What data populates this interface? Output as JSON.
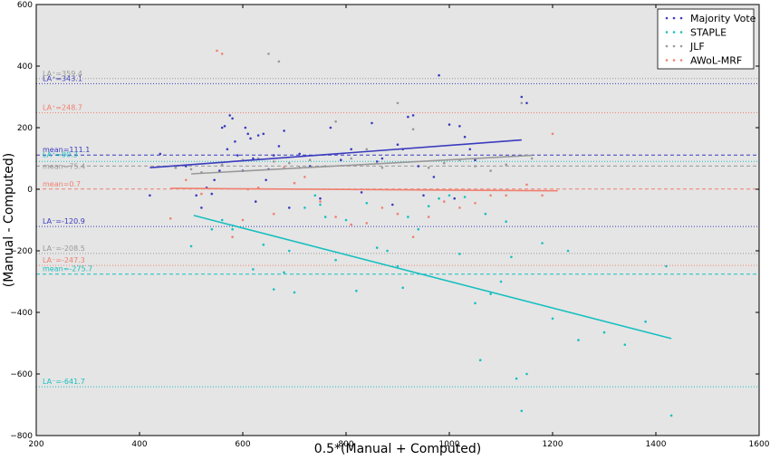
{
  "chart_data": {
    "type": "scatter",
    "xlabel": "0.5*(Manual + Computed)",
    "ylabel": "(Manual - Computed)",
    "xlim": [
      200,
      1600
    ],
    "ylim": [
      -800,
      600
    ],
    "xticks": [
      "200",
      "400",
      "600",
      "800",
      "1000",
      "1200",
      "1400",
      "1600"
    ],
    "yticks": [
      "−800",
      "−600",
      "−400",
      "−200",
      "0",
      "200",
      "400",
      "600"
    ],
    "x_tick_values": [
      200,
      400,
      600,
      800,
      1000,
      1200,
      1400,
      1600
    ],
    "y_tick_values": [
      -800,
      -600,
      -400,
      -200,
      0,
      200,
      400,
      600
    ],
    "background": "#e5e5e5",
    "grid": false,
    "legend_position": "top-right",
    "series": [
      {
        "name": "Majority Vote",
        "color": "#3b3bbf",
        "points": [
          [
            420,
            -20
          ],
          [
            440,
            115
          ],
          [
            470,
            70
          ],
          [
            490,
            75
          ],
          [
            510,
            -20
          ],
          [
            520,
            -60
          ],
          [
            530,
            5
          ],
          [
            540,
            -15
          ],
          [
            545,
            30
          ],
          [
            555,
            60
          ],
          [
            560,
            200
          ],
          [
            565,
            205
          ],
          [
            570,
            130
          ],
          [
            575,
            240
          ],
          [
            580,
            230
          ],
          [
            585,
            155
          ],
          [
            590,
            110
          ],
          [
            600,
            60
          ],
          [
            605,
            200
          ],
          [
            610,
            180
          ],
          [
            615,
            165
          ],
          [
            620,
            100
          ],
          [
            625,
            -40
          ],
          [
            630,
            175
          ],
          [
            640,
            180
          ],
          [
            645,
            30
          ],
          [
            650,
            65
          ],
          [
            660,
            110
          ],
          [
            670,
            140
          ],
          [
            680,
            190
          ],
          [
            690,
            -60
          ],
          [
            710,
            115
          ],
          [
            730,
            75
          ],
          [
            750,
            -30
          ],
          [
            770,
            200
          ],
          [
            790,
            95
          ],
          [
            810,
            130
          ],
          [
            830,
            -10
          ],
          [
            850,
            215
          ],
          [
            860,
            90
          ],
          [
            870,
            100
          ],
          [
            890,
            -50
          ],
          [
            900,
            145
          ],
          [
            910,
            130
          ],
          [
            920,
            235
          ],
          [
            930,
            240
          ],
          [
            940,
            75
          ],
          [
            950,
            -20
          ],
          [
            970,
            40
          ],
          [
            980,
            370
          ],
          [
            1000,
            210
          ],
          [
            1010,
            -30
          ],
          [
            1020,
            205
          ],
          [
            1030,
            170
          ],
          [
            1040,
            130
          ],
          [
            1050,
            95
          ],
          [
            1140,
            300
          ],
          [
            1150,
            280
          ]
        ],
        "regression": [
          [
            420,
            70
          ],
          [
            1140,
            160
          ]
        ],
        "mean": 111.1,
        "mean_label": "mean=111.1",
        "loa_upper": 343.1,
        "loa_upper_label": "LA⁺=343.1",
        "loa_lower": -120.9,
        "loa_lower_label": "LA⁻=-120.9"
      },
      {
        "name": "STAPLE",
        "color": "#17bfbf",
        "points": [
          [
            500,
            -185
          ],
          [
            540,
            -130
          ],
          [
            560,
            -100
          ],
          [
            580,
            -130
          ],
          [
            620,
            -260
          ],
          [
            640,
            -180
          ],
          [
            660,
            -325
          ],
          [
            680,
            -270
          ],
          [
            690,
            -200
          ],
          [
            700,
            -335
          ],
          [
            720,
            -60
          ],
          [
            740,
            -20
          ],
          [
            750,
            -50
          ],
          [
            760,
            -90
          ],
          [
            780,
            -230
          ],
          [
            800,
            -100
          ],
          [
            820,
            -330
          ],
          [
            840,
            -45
          ],
          [
            860,
            -190
          ],
          [
            880,
            -200
          ],
          [
            900,
            -250
          ],
          [
            910,
            -320
          ],
          [
            920,
            -90
          ],
          [
            940,
            -130
          ],
          [
            960,
            -55
          ],
          [
            980,
            -30
          ],
          [
            1000,
            -20
          ],
          [
            1020,
            -210
          ],
          [
            1030,
            -25
          ],
          [
            1050,
            -370
          ],
          [
            1060,
            -555
          ],
          [
            1070,
            -80
          ],
          [
            1080,
            -340
          ],
          [
            1100,
            -300
          ],
          [
            1110,
            -105
          ],
          [
            1120,
            -220
          ],
          [
            1130,
            -615
          ],
          [
            1140,
            -720
          ],
          [
            1150,
            -600
          ],
          [
            1180,
            -175
          ],
          [
            1200,
            -420
          ],
          [
            1230,
            -200
          ],
          [
            1250,
            -490
          ],
          [
            1300,
            -465
          ],
          [
            1340,
            -505
          ],
          [
            1380,
            -430
          ],
          [
            1420,
            -250
          ],
          [
            1430,
            -735
          ]
        ],
        "regression": [
          [
            505,
            -85
          ],
          [
            1430,
            -485
          ]
        ],
        "mean": -275.7,
        "mean_label": "mean=-275.7",
        "loa_upper": 90.3,
        "loa_upper_label": "LA⁺=90.3",
        "loa_lower": -641.7,
        "loa_lower_label": "LA⁻=-641.7"
      },
      {
        "name": "JLF",
        "color": "#999999",
        "points": [
          [
            470,
            70
          ],
          [
            500,
            65
          ],
          [
            520,
            55
          ],
          [
            560,
            80
          ],
          [
            600,
            95
          ],
          [
            630,
            100
          ],
          [
            650,
            440
          ],
          [
            660,
            90
          ],
          [
            670,
            415
          ],
          [
            690,
            85
          ],
          [
            710,
            70
          ],
          [
            730,
            95
          ],
          [
            760,
            75
          ],
          [
            780,
            220
          ],
          [
            810,
            100
          ],
          [
            840,
            130
          ],
          [
            870,
            70
          ],
          [
            900,
            280
          ],
          [
            930,
            195
          ],
          [
            960,
            70
          ],
          [
            990,
            85
          ],
          [
            1020,
            95
          ],
          [
            1050,
            75
          ],
          [
            1080,
            60
          ],
          [
            1110,
            80
          ],
          [
            1140,
            280
          ],
          [
            1160,
            100
          ]
        ],
        "regression": [
          [
            500,
            50
          ],
          [
            1160,
            110
          ]
        ],
        "mean": 75.4,
        "mean_label": "mean=75.4",
        "loa_upper": 359.4,
        "loa_upper_label": "LA⁺=359.4",
        "loa_lower": -208.5,
        "loa_lower_label": "LA⁻=-208.5"
      },
      {
        "name": "AWoL-MRF",
        "color": "#f08070",
        "points": [
          [
            460,
            -95
          ],
          [
            490,
            30
          ],
          [
            520,
            -15
          ],
          [
            550,
            450
          ],
          [
            560,
            440
          ],
          [
            580,
            -155
          ],
          [
            600,
            -100
          ],
          [
            610,
            0
          ],
          [
            630,
            5
          ],
          [
            660,
            -80
          ],
          [
            680,
            70
          ],
          [
            700,
            20
          ],
          [
            720,
            40
          ],
          [
            750,
            -40
          ],
          [
            780,
            -90
          ],
          [
            810,
            -115
          ],
          [
            840,
            -110
          ],
          [
            870,
            -60
          ],
          [
            900,
            -80
          ],
          [
            930,
            -155
          ],
          [
            960,
            -90
          ],
          [
            990,
            -40
          ],
          [
            1020,
            -60
          ],
          [
            1050,
            -45
          ],
          [
            1080,
            -20
          ],
          [
            1110,
            -20
          ],
          [
            1150,
            15
          ],
          [
            1180,
            -20
          ],
          [
            1200,
            180
          ]
        ],
        "regression": [
          [
            460,
            3
          ],
          [
            1210,
            -5
          ]
        ],
        "mean": 0.7,
        "mean_label": "mean=0.7",
        "loa_upper": 248.7,
        "loa_upper_label": "LA⁺=248.7",
        "loa_lower": -247.3,
        "loa_lower_label": "LA⁻=-247.3"
      }
    ]
  }
}
